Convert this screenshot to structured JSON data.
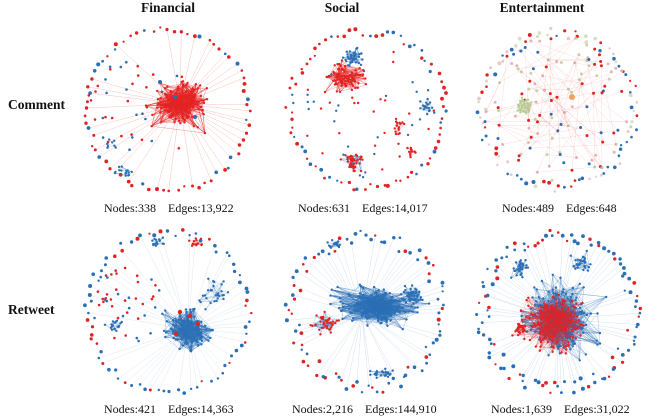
{
  "columns": [
    "Financial",
    "Social",
    "Entertainment"
  ],
  "rows": [
    "Comment",
    "Retweet"
  ],
  "panels": [
    {
      "nodes_label": "Nodes:338",
      "edges_label": "Edges:13,922"
    },
    {
      "nodes_label": "Nodes:631",
      "edges_label": "Edges:14,017"
    },
    {
      "nodes_label": "Nodes:489",
      "edges_label": "Edges:648"
    },
    {
      "nodes_label": "Nodes:421",
      "edges_label": "Edges:14,363"
    },
    {
      "nodes_label": "Nodes:2,216",
      "edges_label": "Edges:144,910"
    },
    {
      "nodes_label": "Nodes:1,639",
      "edges_label": "Edges:31,022"
    }
  ],
  "colors": {
    "red": "#e32222",
    "blue": "#2b6fb5",
    "green": "#b9cc95",
    "orange": "#f0a25a"
  }
}
